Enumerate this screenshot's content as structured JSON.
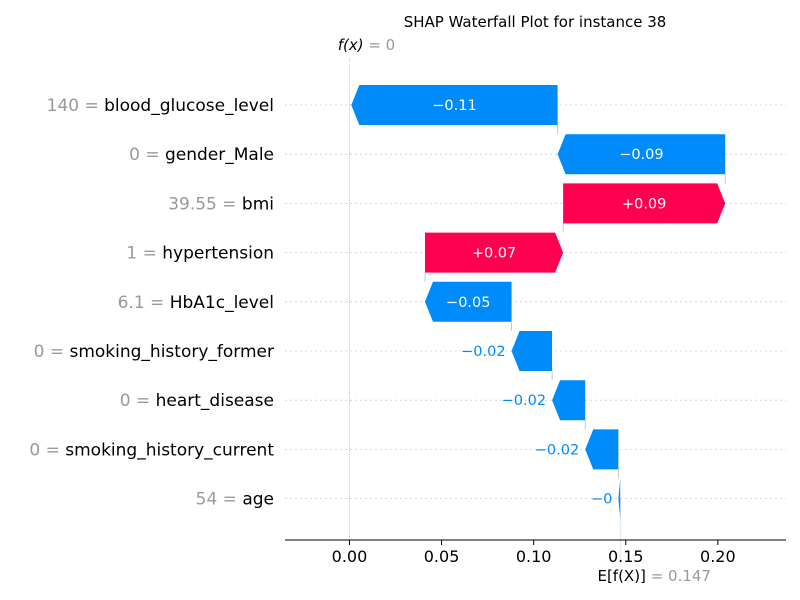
{
  "chart_data": {
    "type": "waterfall",
    "title": "SHAP Waterfall Plot for instance 38",
    "fx_label": "f(x)",
    "fx_eq": " = 0",
    "fx_value": 0,
    "expected_label": "E[f(X)]",
    "expected_eq": " = 0.147",
    "expected_value": 0.147,
    "xlim": [
      -0.035,
      0.237
    ],
    "xticks": [
      0.0,
      0.05,
      0.1,
      0.15,
      0.2
    ],
    "xtick_labels": [
      "0.00",
      "0.05",
      "0.10",
      "0.15",
      "0.20"
    ],
    "colors": {
      "positive": "#ff0051",
      "negative": "#008bfb",
      "grid": "#cccccc"
    },
    "features": [
      {
        "value": "140",
        "name": "blood_glucose_level",
        "shap": -0.112,
        "label": "−0.11"
      },
      {
        "value": "0",
        "name": "gender_Male",
        "shap": -0.091,
        "label": "−0.09"
      },
      {
        "value": "39.55",
        "name": "bmi",
        "shap": 0.088,
        "label": "+0.09"
      },
      {
        "value": "1",
        "name": "hypertension",
        "shap": 0.075,
        "label": "+0.07"
      },
      {
        "value": "6.1",
        "name": "HbA1c_level",
        "shap": -0.047,
        "label": "−0.05"
      },
      {
        "value": "0",
        "name": "smoking_history_former",
        "shap": -0.022,
        "label": "−0.02"
      },
      {
        "value": "0",
        "name": "heart_disease",
        "shap": -0.018,
        "label": "−0.02"
      },
      {
        "value": "0",
        "name": "smoking_history_current",
        "shap": -0.018,
        "label": "−0.02"
      },
      {
        "value": "54",
        "name": "age",
        "shap": -0.001,
        "label": "−0"
      }
    ]
  }
}
